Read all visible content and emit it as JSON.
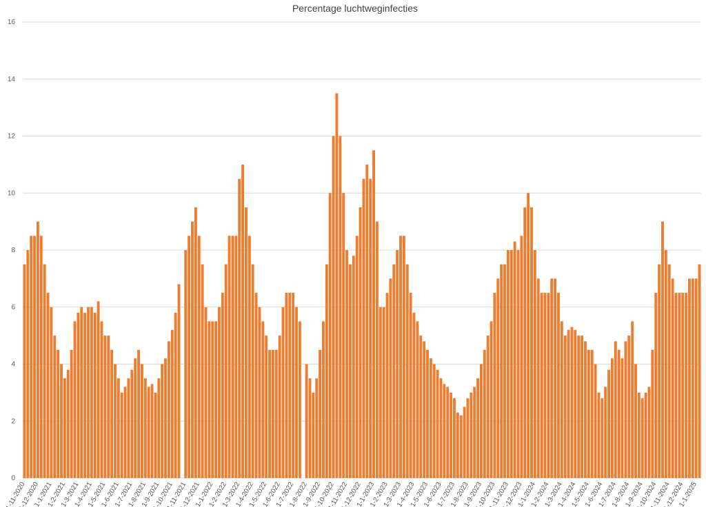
{
  "chart_data": {
    "type": "bar",
    "title": "Percentage luchtweginfecties",
    "color": "#ed7d31",
    "grid": true,
    "ylim": [
      0,
      16
    ],
    "yticks": [
      0,
      2,
      4,
      6,
      8,
      10,
      12,
      14,
      16
    ],
    "categories": [
      "1-11-2020",
      null,
      null,
      null,
      "1-12-2020",
      null,
      null,
      null,
      "1-1-2021",
      null,
      null,
      null,
      "1-2-2021",
      null,
      null,
      null,
      "1-3-2021",
      null,
      null,
      null,
      "1-4-2021",
      null,
      null,
      null,
      "1-5-2021",
      null,
      null,
      null,
      "1-6-2021",
      null,
      null,
      null,
      "1-7-2021",
      null,
      null,
      null,
      "1-8-2021",
      null,
      null,
      null,
      "1-9-2021",
      null,
      null,
      null,
      "1-10-2021",
      null,
      null,
      null,
      "1-11-2021",
      null,
      null,
      null,
      "1-12-2021",
      null,
      null,
      null,
      "1-1-2022",
      null,
      null,
      null,
      "1-2-2022",
      null,
      null,
      null,
      "1-3-2022",
      null,
      null,
      null,
      "1-4-2022",
      null,
      null,
      null,
      "1-5-2022",
      null,
      null,
      null,
      "1-6-2022",
      null,
      null,
      null,
      "1-7-2022",
      null,
      null,
      null,
      "1-8-2022",
      null,
      null,
      null,
      "1-9-2022",
      null,
      null,
      null,
      "1-10-2022",
      null,
      null,
      null,
      "1-11-2022",
      null,
      null,
      null,
      "1-12-2022",
      null,
      null,
      null,
      "1-1-2023",
      null,
      null,
      null,
      "1-2-2023",
      null,
      null,
      null,
      "1-3-2023",
      null,
      null,
      null,
      "1-4-2023",
      null,
      null,
      null,
      "1-5-2023",
      null,
      null,
      null,
      "1-6-2023",
      null,
      null,
      null,
      "1-7-2023",
      null,
      null,
      null,
      "1-8-2023",
      null,
      null,
      null,
      "1-9-2023",
      null,
      null,
      null,
      "1-10-2023",
      null,
      null,
      null,
      "1-11-2023",
      null,
      null,
      null,
      "1-12-2023",
      null,
      null,
      null,
      "1-1-2024",
      null,
      null,
      null,
      "1-2-2024",
      null,
      null,
      null,
      "1-3-2024",
      null,
      null,
      null,
      "1-4-2024",
      null,
      null,
      null,
      "1-5-2024",
      null,
      null,
      null,
      "1-6-2024",
      null,
      null,
      null,
      "1-7-2024",
      null,
      null,
      null,
      "1-8-2024",
      null,
      null,
      null,
      "1-9-2024",
      null,
      null,
      null,
      "1-10-2024",
      null,
      null,
      null,
      "1-11-2024",
      null,
      null,
      null,
      "1-12-2024",
      null,
      null,
      null,
      "1-1-2025",
      null
    ],
    "values": [
      7.5,
      8,
      8.5,
      8.5,
      9,
      8.5,
      7.5,
      6.5,
      6,
      5,
      4.5,
      4,
      3.5,
      3.8,
      4.5,
      5.5,
      5.8,
      6,
      5.8,
      6,
      6,
      5.8,
      6.2,
      5.5,
      5,
      5,
      4.5,
      4,
      3.5,
      3,
      3.2,
      3.5,
      3.8,
      4.2,
      4.5,
      4,
      3.5,
      3.2,
      3.3,
      3,
      3.5,
      4,
      4.2,
      4.8,
      5.2,
      5.8,
      6.8,
      null,
      8,
      8.5,
      9,
      9.5,
      8.5,
      7.5,
      6,
      5.5,
      5.5,
      5.5,
      6,
      6.5,
      7.5,
      8.5,
      8.5,
      8.5,
      10.5,
      11,
      9.5,
      8.5,
      7.5,
      6.5,
      6,
      5.5,
      5,
      4.5,
      4.5,
      4.5,
      5,
      6,
      6.5,
      6.5,
      6.5,
      6,
      5.5,
      null,
      4,
      3.5,
      3,
      3.5,
      4.5,
      5.5,
      7.5,
      10,
      12,
      13.5,
      12,
      10,
      8,
      7.5,
      7.8,
      8.5,
      9.5,
      10.5,
      11,
      10.5,
      11.5,
      9,
      6,
      6,
      6.5,
      7,
      7.5,
      8,
      8.5,
      8.5,
      7.5,
      6.5,
      5.8,
      5.5,
      5,
      4.8,
      4.5,
      4.2,
      4,
      3.8,
      3.5,
      3.3,
      3.2,
      3,
      2.8,
      2.3,
      2.2,
      2.5,
      2.8,
      3,
      3.2,
      3.5,
      4,
      4.5,
      5,
      5.5,
      6.5,
      7,
      7.5,
      7.5,
      8,
      8,
      8.3,
      8,
      8.5,
      9.5,
      10,
      9.5,
      8,
      7,
      6.5,
      6.5,
      6.5,
      7,
      7,
      6.5,
      5.5,
      5,
      5.2,
      5.3,
      5.2,
      5,
      5,
      4.8,
      4.5,
      4.5,
      4,
      3,
      2.8,
      3.2,
      3.8,
      4.2,
      4.8,
      4.5,
      4.2,
      4.8,
      5,
      5.5,
      4,
      3,
      2.8,
      3,
      3.2,
      4.5,
      6.5,
      7.5,
      9,
      8,
      7.5,
      7,
      6.5,
      6.5,
      6.5,
      6.5,
      7,
      7,
      7,
      7.5
    ]
  }
}
